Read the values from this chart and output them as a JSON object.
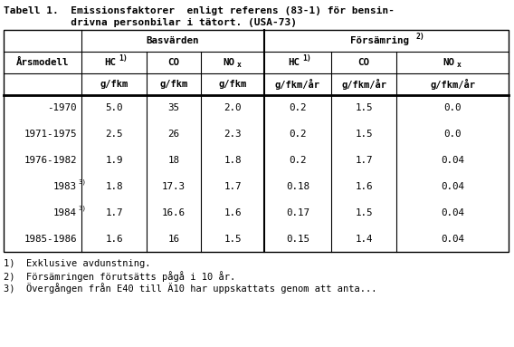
{
  "title_line1": "Tabell 1.  Emissionsfaktorer  enligt referens (83-1) för bensin-",
  "title_line2": "           drivna personbilar i tätort. (USA-73)",
  "col_header_row1_left": "Årsmodell",
  "col_header_group1": "Basvärden",
  "col_header_group2": "Försämring",
  "group2_superscript": "2)",
  "sub_names": [
    "HC",
    "CO",
    "NO",
    "HC",
    "CO",
    "NO"
  ],
  "sub_sups": [
    "1)",
    "",
    "x",
    "1)",
    "",
    "x"
  ],
  "sub_is_subscript": [
    false,
    false,
    true,
    false,
    false,
    true
  ],
  "units": [
    "g/fkm",
    "g/fkm",
    "g/fkm",
    "g/fkm/år",
    "g/fkm/år",
    "g/fkm/år"
  ],
  "row_labels": [
    "-1970",
    "1971-1975",
    "1976-1982",
    "1983",
    "1984",
    "1985-1986"
  ],
  "row_superscripts": [
    "",
    "",
    "",
    "3)",
    "3)",
    ""
  ],
  "data": [
    [
      "5.0",
      "35",
      "2.0",
      "0.2",
      "1.5",
      "0.0"
    ],
    [
      "2.5",
      "26",
      "2.3",
      "0.2",
      "1.5",
      "0.0"
    ],
    [
      "1.9",
      "18",
      "1.8",
      "0.2",
      "1.7",
      "0.04"
    ],
    [
      "1.8",
      "17.3",
      "1.7",
      "0.18",
      "1.6",
      "0.04"
    ],
    [
      "1.7",
      "16.6",
      "1.6",
      "0.17",
      "1.5",
      "0.04"
    ],
    [
      "1.6",
      "16",
      "1.5",
      "0.15",
      "1.4",
      "0.04"
    ]
  ],
  "footnotes": [
    "1)  Exklusive avdunstning.",
    "2)  Försämringen förutsätts pågå i 10 år.",
    "3)  Övergången från E40 till Ä10 har uppskattats genom att anta..."
  ],
  "bg_color": "#ffffff",
  "text_color": "#000000",
  "font_size": 7.8,
  "title_font_size": 8.0,
  "footnote_font_size": 7.5
}
